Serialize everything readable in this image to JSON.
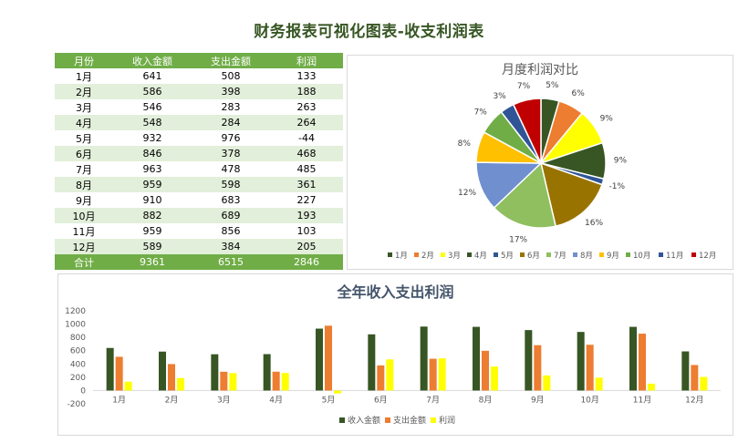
{
  "page": {
    "title": "财务报表可视化图表-收支利润表"
  },
  "table": {
    "headers": [
      "月份",
      "收入金额",
      "支出金额",
      "利润"
    ],
    "rows": [
      [
        "1月",
        "641",
        "508",
        "133"
      ],
      [
        "2月",
        "586",
        "398",
        "188"
      ],
      [
        "3月",
        "546",
        "283",
        "263"
      ],
      [
        "4月",
        "548",
        "284",
        "264"
      ],
      [
        "5月",
        "932",
        "976",
        "-44"
      ],
      [
        "6月",
        "846",
        "378",
        "468"
      ],
      [
        "7月",
        "963",
        "478",
        "485"
      ],
      [
        "8月",
        "959",
        "598",
        "361"
      ],
      [
        "9月",
        "910",
        "683",
        "227"
      ],
      [
        "10月",
        "882",
        "689",
        "193"
      ],
      [
        "11月",
        "959",
        "856",
        "103"
      ],
      [
        "12月",
        "589",
        "384",
        "205"
      ]
    ],
    "total": [
      "合计",
      "9361",
      "6515",
      "2846"
    ]
  },
  "colors": {
    "header_green": "#70ad47",
    "band_green": "#e2efda",
    "pie": [
      "#375623",
      "#ed7d31",
      "#ffff00",
      "#375623",
      "#2f5597",
      "#997300",
      "#8fbf5f",
      "#6f8fcf",
      "#ffc000",
      "#70ad47",
      "#2f5597",
      "#c00000"
    ],
    "series": [
      "#375623",
      "#ed7d31",
      "#ffff00"
    ]
  },
  "chart_data": [
    {
      "type": "pie",
      "title": "月度利润对比",
      "categories": [
        "1月",
        "2月",
        "3月",
        "4月",
        "5月",
        "6月",
        "7月",
        "8月",
        "9月",
        "10月",
        "11月",
        "12月"
      ],
      "values": [
        133,
        188,
        263,
        264,
        -44,
        468,
        485,
        361,
        227,
        193,
        103,
        205
      ],
      "labels": [
        "5%",
        "6%",
        "9%",
        "9%",
        "-1%",
        "16%",
        "17%",
        "12%",
        "8%",
        "7%",
        "3%",
        "7%"
      ],
      "legend": "bottom"
    },
    {
      "type": "bar",
      "title": "全年收入支出利润",
      "categories": [
        "1月",
        "2月",
        "3月",
        "4月",
        "5月",
        "6月",
        "7月",
        "8月",
        "9月",
        "10月",
        "11月",
        "12月"
      ],
      "series": [
        {
          "name": "收入金额",
          "values": [
            641,
            586,
            546,
            548,
            932,
            846,
            963,
            959,
            910,
            882,
            959,
            589
          ]
        },
        {
          "name": "支出金额",
          "values": [
            508,
            398,
            283,
            284,
            976,
            378,
            478,
            598,
            683,
            689,
            856,
            384
          ]
        },
        {
          "name": "利润",
          "values": [
            133,
            188,
            263,
            264,
            -44,
            468,
            485,
            361,
            227,
            193,
            103,
            205
          ]
        }
      ],
      "yticks": [
        "1200",
        "1000",
        "800",
        "600",
        "400",
        "200",
        "0",
        "-200"
      ],
      "ylim": [
        -200,
        1200
      ],
      "legend": "bottom"
    }
  ]
}
